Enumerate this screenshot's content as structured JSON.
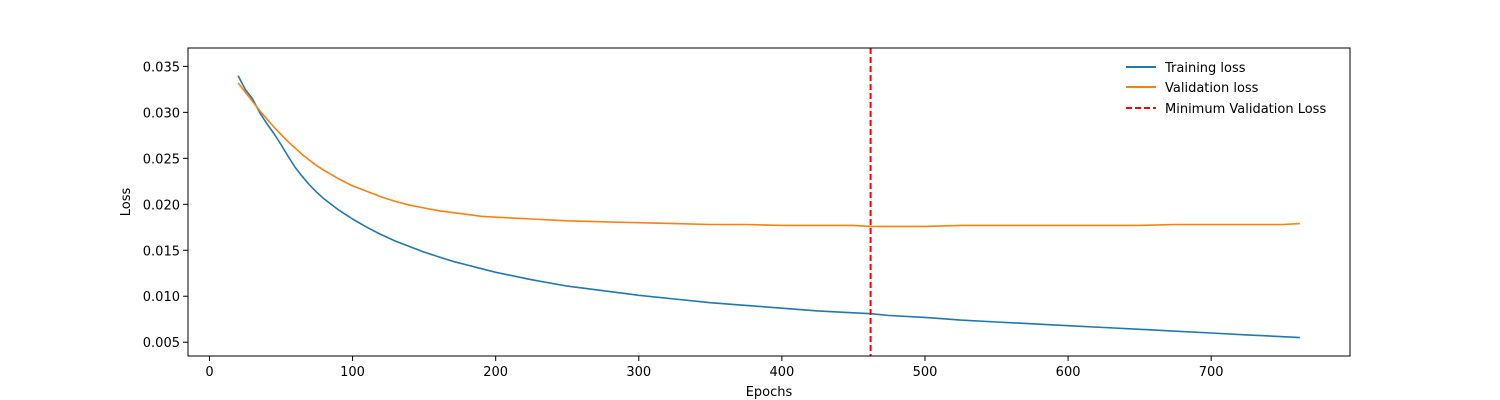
{
  "chart_data": {
    "type": "line",
    "title": "",
    "xlabel": "Epochs",
    "ylabel": "Loss",
    "xlim": [
      -15,
      797
    ],
    "ylim": [
      0.0035,
      0.037
    ],
    "xticks": [
      0,
      100,
      200,
      300,
      400,
      500,
      600,
      700
    ],
    "yticks": [
      0.005,
      0.01,
      0.015,
      0.02,
      0.025,
      0.03,
      0.035
    ],
    "ytick_labels": [
      "0.005",
      "0.010",
      "0.015",
      "0.020",
      "0.025",
      "0.030",
      "0.035"
    ],
    "grid": false,
    "legend_position": "top-right",
    "x": [
      20,
      25,
      30,
      35,
      40,
      45,
      50,
      55,
      60,
      65,
      70,
      75,
      80,
      90,
      100,
      110,
      120,
      130,
      140,
      150,
      160,
      170,
      180,
      190,
      200,
      225,
      250,
      275,
      300,
      325,
      350,
      375,
      400,
      425,
      450,
      462,
      475,
      500,
      525,
      550,
      575,
      600,
      625,
      650,
      675,
      700,
      725,
      750,
      762
    ],
    "series": [
      {
        "name": "Training loss",
        "color": "#1f77b4",
        "values": [
          0.034,
          0.0325,
          0.0315,
          0.03,
          0.0288,
          0.0277,
          0.0265,
          0.0252,
          0.024,
          0.023,
          0.0221,
          0.0213,
          0.0206,
          0.0194,
          0.0184,
          0.0175,
          0.0167,
          0.016,
          0.0154,
          0.0148,
          0.0143,
          0.0138,
          0.0134,
          0.013,
          0.0126,
          0.0118,
          0.0111,
          0.0106,
          0.0101,
          0.0097,
          0.0093,
          0.009,
          0.0087,
          0.0084,
          0.0082,
          0.0081,
          0.0079,
          0.0077,
          0.0074,
          0.0072,
          0.007,
          0.0068,
          0.0066,
          0.0064,
          0.0062,
          0.006,
          0.0058,
          0.0056,
          0.0055
        ]
      },
      {
        "name": "Validation loss",
        "color": "#ff7f0e",
        "values": [
          0.0332,
          0.0322,
          0.0312,
          0.0302,
          0.0293,
          0.0284,
          0.0276,
          0.0268,
          0.0261,
          0.0254,
          0.0248,
          0.0242,
          0.0237,
          0.0228,
          0.022,
          0.0214,
          0.0208,
          0.0203,
          0.0199,
          0.0196,
          0.0193,
          0.0191,
          0.0189,
          0.0187,
          0.0186,
          0.0184,
          0.0182,
          0.0181,
          0.018,
          0.0179,
          0.0178,
          0.0178,
          0.0177,
          0.0177,
          0.0177,
          0.0176,
          0.0176,
          0.0176,
          0.0177,
          0.0177,
          0.0177,
          0.0177,
          0.0177,
          0.0177,
          0.0178,
          0.0178,
          0.0178,
          0.0178,
          0.0179
        ]
      }
    ],
    "vline": {
      "name": "Minimum Validation Loss",
      "x": 462,
      "color": "#ff0000",
      "style": "dashed"
    }
  }
}
